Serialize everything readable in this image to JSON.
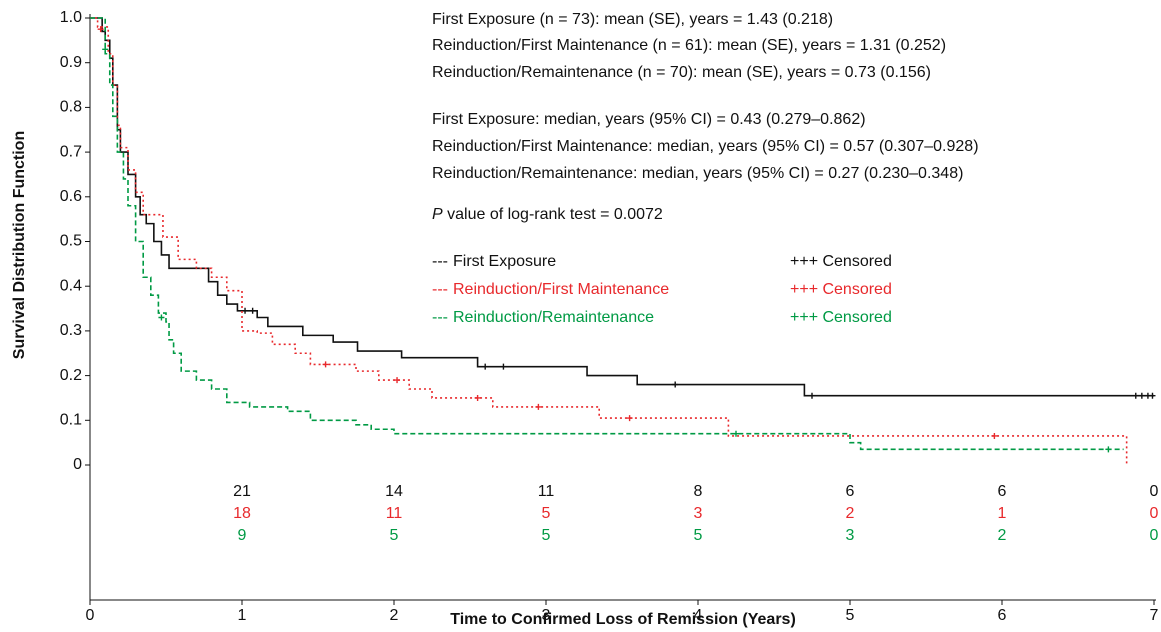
{
  "chart_data": {
    "type": "step",
    "xlabel": "Time to Confirmed Loss of Remission (Years)",
    "ylabel": "Survival Distribution Function",
    "xlim": [
      0,
      7
    ],
    "ylim": [
      0,
      1
    ],
    "xticks": [
      0,
      1,
      2,
      3,
      4,
      5,
      6,
      7
    ],
    "yticks": [
      0,
      0.1,
      0.2,
      0.3,
      0.4,
      0.5,
      0.6,
      0.7,
      0.8,
      0.9,
      {
        "value": 1,
        "label": "1.0"
      }
    ],
    "annotations": [
      "First Exposure (n = 73): mean (SE), years = 1.43 (0.218)",
      "Reinduction/First Maintenance (n = 61): mean (SE), years = 1.31 (0.252)",
      "Reinduction/Remaintenance (n = 70): mean (SE), years = 0.73 (0.156)",
      "First Exposure: median, years (95% CI) = 0.43 (0.279–0.862)",
      "Reinduction/First Maintenance: median, years (95% CI) = 0.57 (0.307–0.928)",
      "Reinduction/Remaintenance: median, years (95% CI) = 0.27 (0.230–0.348)"
    ],
    "p_symbol": "P",
    "p_text": " value of log-rank test = 0.0072",
    "legend_prefix": "---",
    "censored_label": "+++ Censored",
    "at_risk_x": [
      1,
      2,
      3,
      4,
      5,
      6,
      7
    ],
    "series": [
      {
        "name": "First Exposure",
        "color": "#111111",
        "dash": "none",
        "x": [
          0,
          0.08,
          0.1,
          0.13,
          0.15,
          0.18,
          0.2,
          0.25,
          0.3,
          0.33,
          0.37,
          0.42,
          0.47,
          0.52,
          0.78,
          0.84,
          0.9,
          0.97,
          1.1,
          1.17,
          1.4,
          1.6,
          1.76,
          2.05,
          2.55,
          3.27,
          3.6,
          4.7,
          7
        ],
        "values": [
          1,
          0.97,
          0.95,
          0.91,
          0.85,
          0.75,
          0.7,
          0.65,
          0.6,
          0.56,
          0.54,
          0.5,
          0.47,
          0.44,
          0.41,
          0.38,
          0.36,
          0.345,
          0.33,
          0.31,
          0.29,
          0.275,
          0.255,
          0.24,
          0.22,
          0.2,
          0.18,
          0.155,
          0.155
        ],
        "censor_x": [
          1.02,
          1.07,
          2.6,
          2.72,
          3.85,
          4.75,
          6.88,
          6.92,
          6.96,
          6.99
        ],
        "censor_values": [
          0.345,
          0.345,
          0.22,
          0.22,
          0.18,
          0.155,
          0.155,
          0.155,
          0.155,
          0.155
        ],
        "at_risk": [
          21,
          14,
          11,
          8,
          6,
          6,
          0
        ]
      },
      {
        "name": "Reinduction/First Maintenance",
        "color": "#e8292c",
        "dash": "2 3",
        "x": [
          0,
          0.05,
          0.12,
          0.15,
          0.18,
          0.2,
          0.25,
          0.3,
          0.35,
          0.48,
          0.58,
          0.7,
          0.8,
          0.9,
          1.0,
          1.1,
          1.2,
          1.35,
          1.45,
          1.75,
          1.9,
          2.1,
          2.25,
          2.65,
          3.35,
          4.2,
          6.82
        ],
        "values": [
          1,
          0.98,
          0.92,
          0.85,
          0.76,
          0.71,
          0.66,
          0.61,
          0.56,
          0.51,
          0.46,
          0.44,
          0.42,
          0.39,
          0.3,
          0.295,
          0.27,
          0.25,
          0.225,
          0.21,
          0.19,
          0.17,
          0.15,
          0.13,
          0.105,
          0.065,
          0
        ],
        "censor_x": [
          0.07,
          1.55,
          2.02,
          2.55,
          2.95,
          3.55,
          5.95
        ],
        "censor_values": [
          0.975,
          0.225,
          0.19,
          0.15,
          0.13,
          0.105,
          0.065
        ],
        "at_risk": [
          18,
          11,
          5,
          3,
          2,
          1,
          0
        ]
      },
      {
        "name": "Reinduction/Remaintenance",
        "color": "#009a44",
        "dash": "5 3",
        "x": [
          0,
          0.1,
          0.13,
          0.15,
          0.18,
          0.22,
          0.25,
          0.3,
          0.35,
          0.4,
          0.45,
          0.5,
          0.52,
          0.55,
          0.6,
          0.7,
          0.8,
          0.9,
          1.05,
          1.3,
          1.45,
          1.75,
          1.85,
          2.0,
          5.0,
          5.07,
          6.8
        ],
        "values": [
          1,
          0.92,
          0.85,
          0.78,
          0.7,
          0.64,
          0.58,
          0.5,
          0.42,
          0.38,
          0.34,
          0.32,
          0.28,
          0.25,
          0.21,
          0.19,
          0.17,
          0.14,
          0.13,
          0.12,
          0.1,
          0.09,
          0.08,
          0.07,
          0.05,
          0.035,
          0.035
        ],
        "censor_x": [
          0.1,
          0.47,
          4.25,
          6.7
        ],
        "censor_values": [
          0.93,
          0.33,
          0.07,
          0.035
        ],
        "at_risk": [
          9,
          5,
          5,
          5,
          3,
          2,
          0
        ]
      }
    ]
  }
}
